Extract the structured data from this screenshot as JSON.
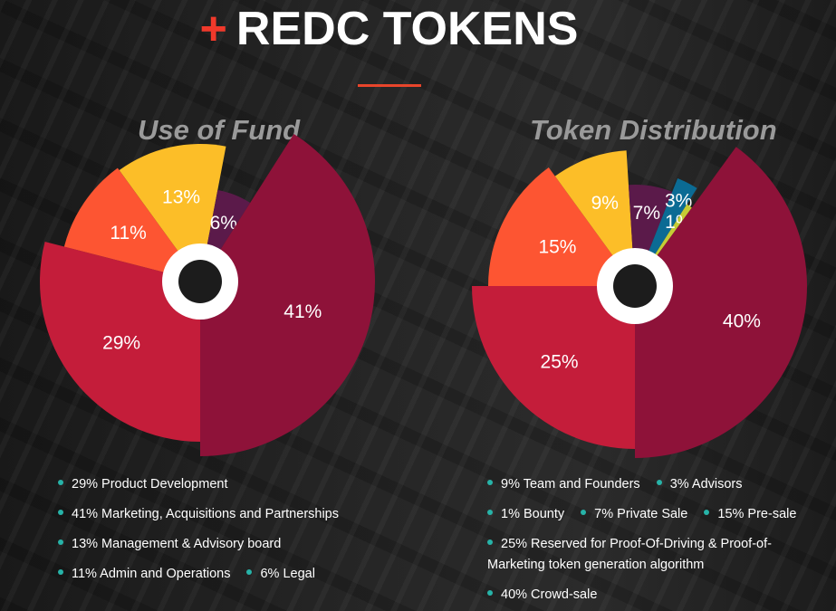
{
  "header": {
    "plus": "+",
    "title": "REDC TOKENS"
  },
  "chart_data": [
    {
      "type": "pie",
      "title": "Use of Fund",
      "slices": [
        {
          "label": "Product Development",
          "value": 29,
          "display": "29%",
          "color": "#c41d3a"
        },
        {
          "label": "Admin and Operations",
          "value": 11,
          "display": "11%",
          "color": "#fd5532"
        },
        {
          "label": "Management & Advisory board",
          "value": 13,
          "display": "13%",
          "color": "#fcbe28"
        },
        {
          "label": "Legal",
          "value": 6,
          "display": "6%",
          "color": "#5b1a4a"
        },
        {
          "label": "Marketing, Acquisitions and Partnerships",
          "value": 41,
          "display": "41%",
          "color": "#8e1239"
        }
      ],
      "legend": [
        [
          "29% Product Development"
        ],
        [
          "41% Marketing, Acquisitions and Partnerships"
        ],
        [
          "13% Management & Advisory board"
        ],
        [
          "11% Admin and Operations",
          "6% Legal"
        ]
      ]
    },
    {
      "type": "pie",
      "title": "Token Distribution",
      "slices": [
        {
          "label": "Reserved for Proof-Of-Driving & Proof-of-Marketing token generation algorithm",
          "value": 25,
          "display": "25%",
          "color": "#c41d3a"
        },
        {
          "label": "Pre-sale",
          "value": 15,
          "display": "15%",
          "color": "#fd5532"
        },
        {
          "label": "Team and Founders",
          "value": 9,
          "display": "9%",
          "color": "#fcbe28"
        },
        {
          "label": "Private Sale",
          "value": 7,
          "display": "7%",
          "color": "#5b1a4a"
        },
        {
          "label": "Advisors",
          "value": 3,
          "display": "3%",
          "color": "#0b6b94"
        },
        {
          "label": "Bounty",
          "value": 1,
          "display": "1%",
          "color": "#c5cc35"
        },
        {
          "label": "Crowd-sale",
          "value": 40,
          "display": "40%",
          "color": "#8e1239"
        }
      ],
      "legend": [
        [
          "9% Team and Founders",
          "3% Advisors"
        ],
        [
          "1% Bounty",
          "7% Private Sale",
          "15% Pre-sale"
        ],
        [
          "25% Reserved for Proof-Of-Driving & Proof-of-"
        ],
        [
          "40% Crowd-sale"
        ]
      ],
      "legend_wrap": "Marketing token generation algorithm"
    }
  ]
}
